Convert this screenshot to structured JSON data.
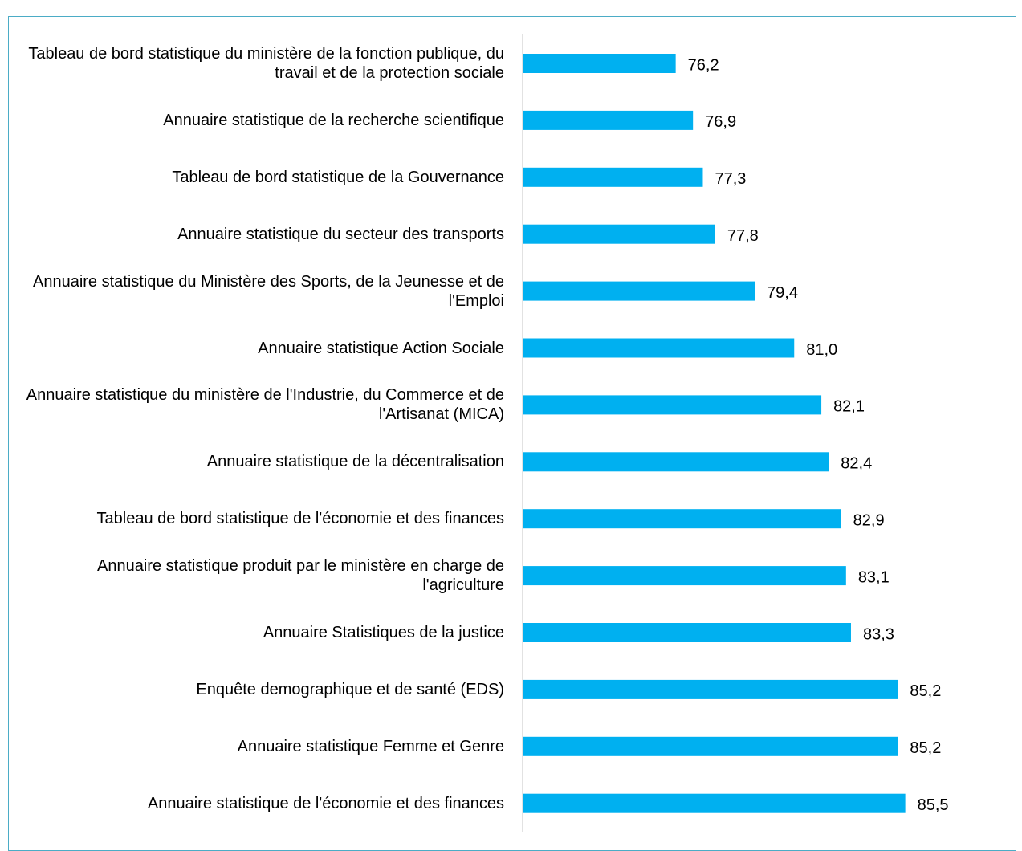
{
  "chart_data": {
    "type": "bar",
    "orientation": "horizontal",
    "categories": [
      "Tableau de bord statistique du ministère de la fonction publique, du travail et de la protection sociale",
      "Annuaire statistique de la recherche scientifique",
      "Tableau de bord statistique de la Gouvernance",
      "Annuaire statistique du secteur des transports",
      "Annuaire statistique du Ministère des Sports, de la Jeunesse et de l'Emploi",
      "Annuaire statistique Action Sociale",
      "Annuaire statistique du ministère de l'Industrie, du Commerce et de l'Artisanat (MICA)",
      "Annuaire statistique de la décentralisation",
      "Tableau de bord statistique de l'économie et des finances",
      "Annuaire statistique produit par le ministère en charge de l'agriculture",
      "Annuaire Statistiques de la justice",
      "Enquête demographique et de santé (EDS)",
      "Annuaire statistique Femme et Genre",
      "Annuaire statistique de l'économie et des finances"
    ],
    "values": [
      76.2,
      76.9,
      77.3,
      77.8,
      79.4,
      81.0,
      82.1,
      82.4,
      82.9,
      83.1,
      83.3,
      85.2,
      85.2,
      85.5
    ],
    "value_labels": [
      "76,2",
      "76,9",
      "77,3",
      "77,8",
      "79,4",
      "81,0",
      "82,1",
      "82,4",
      "82,9",
      "83,1",
      "83,3",
      "85,2",
      "85,2",
      "85,5"
    ],
    "color": "#00b0f0",
    "xlim": [
      70,
      90
    ]
  }
}
